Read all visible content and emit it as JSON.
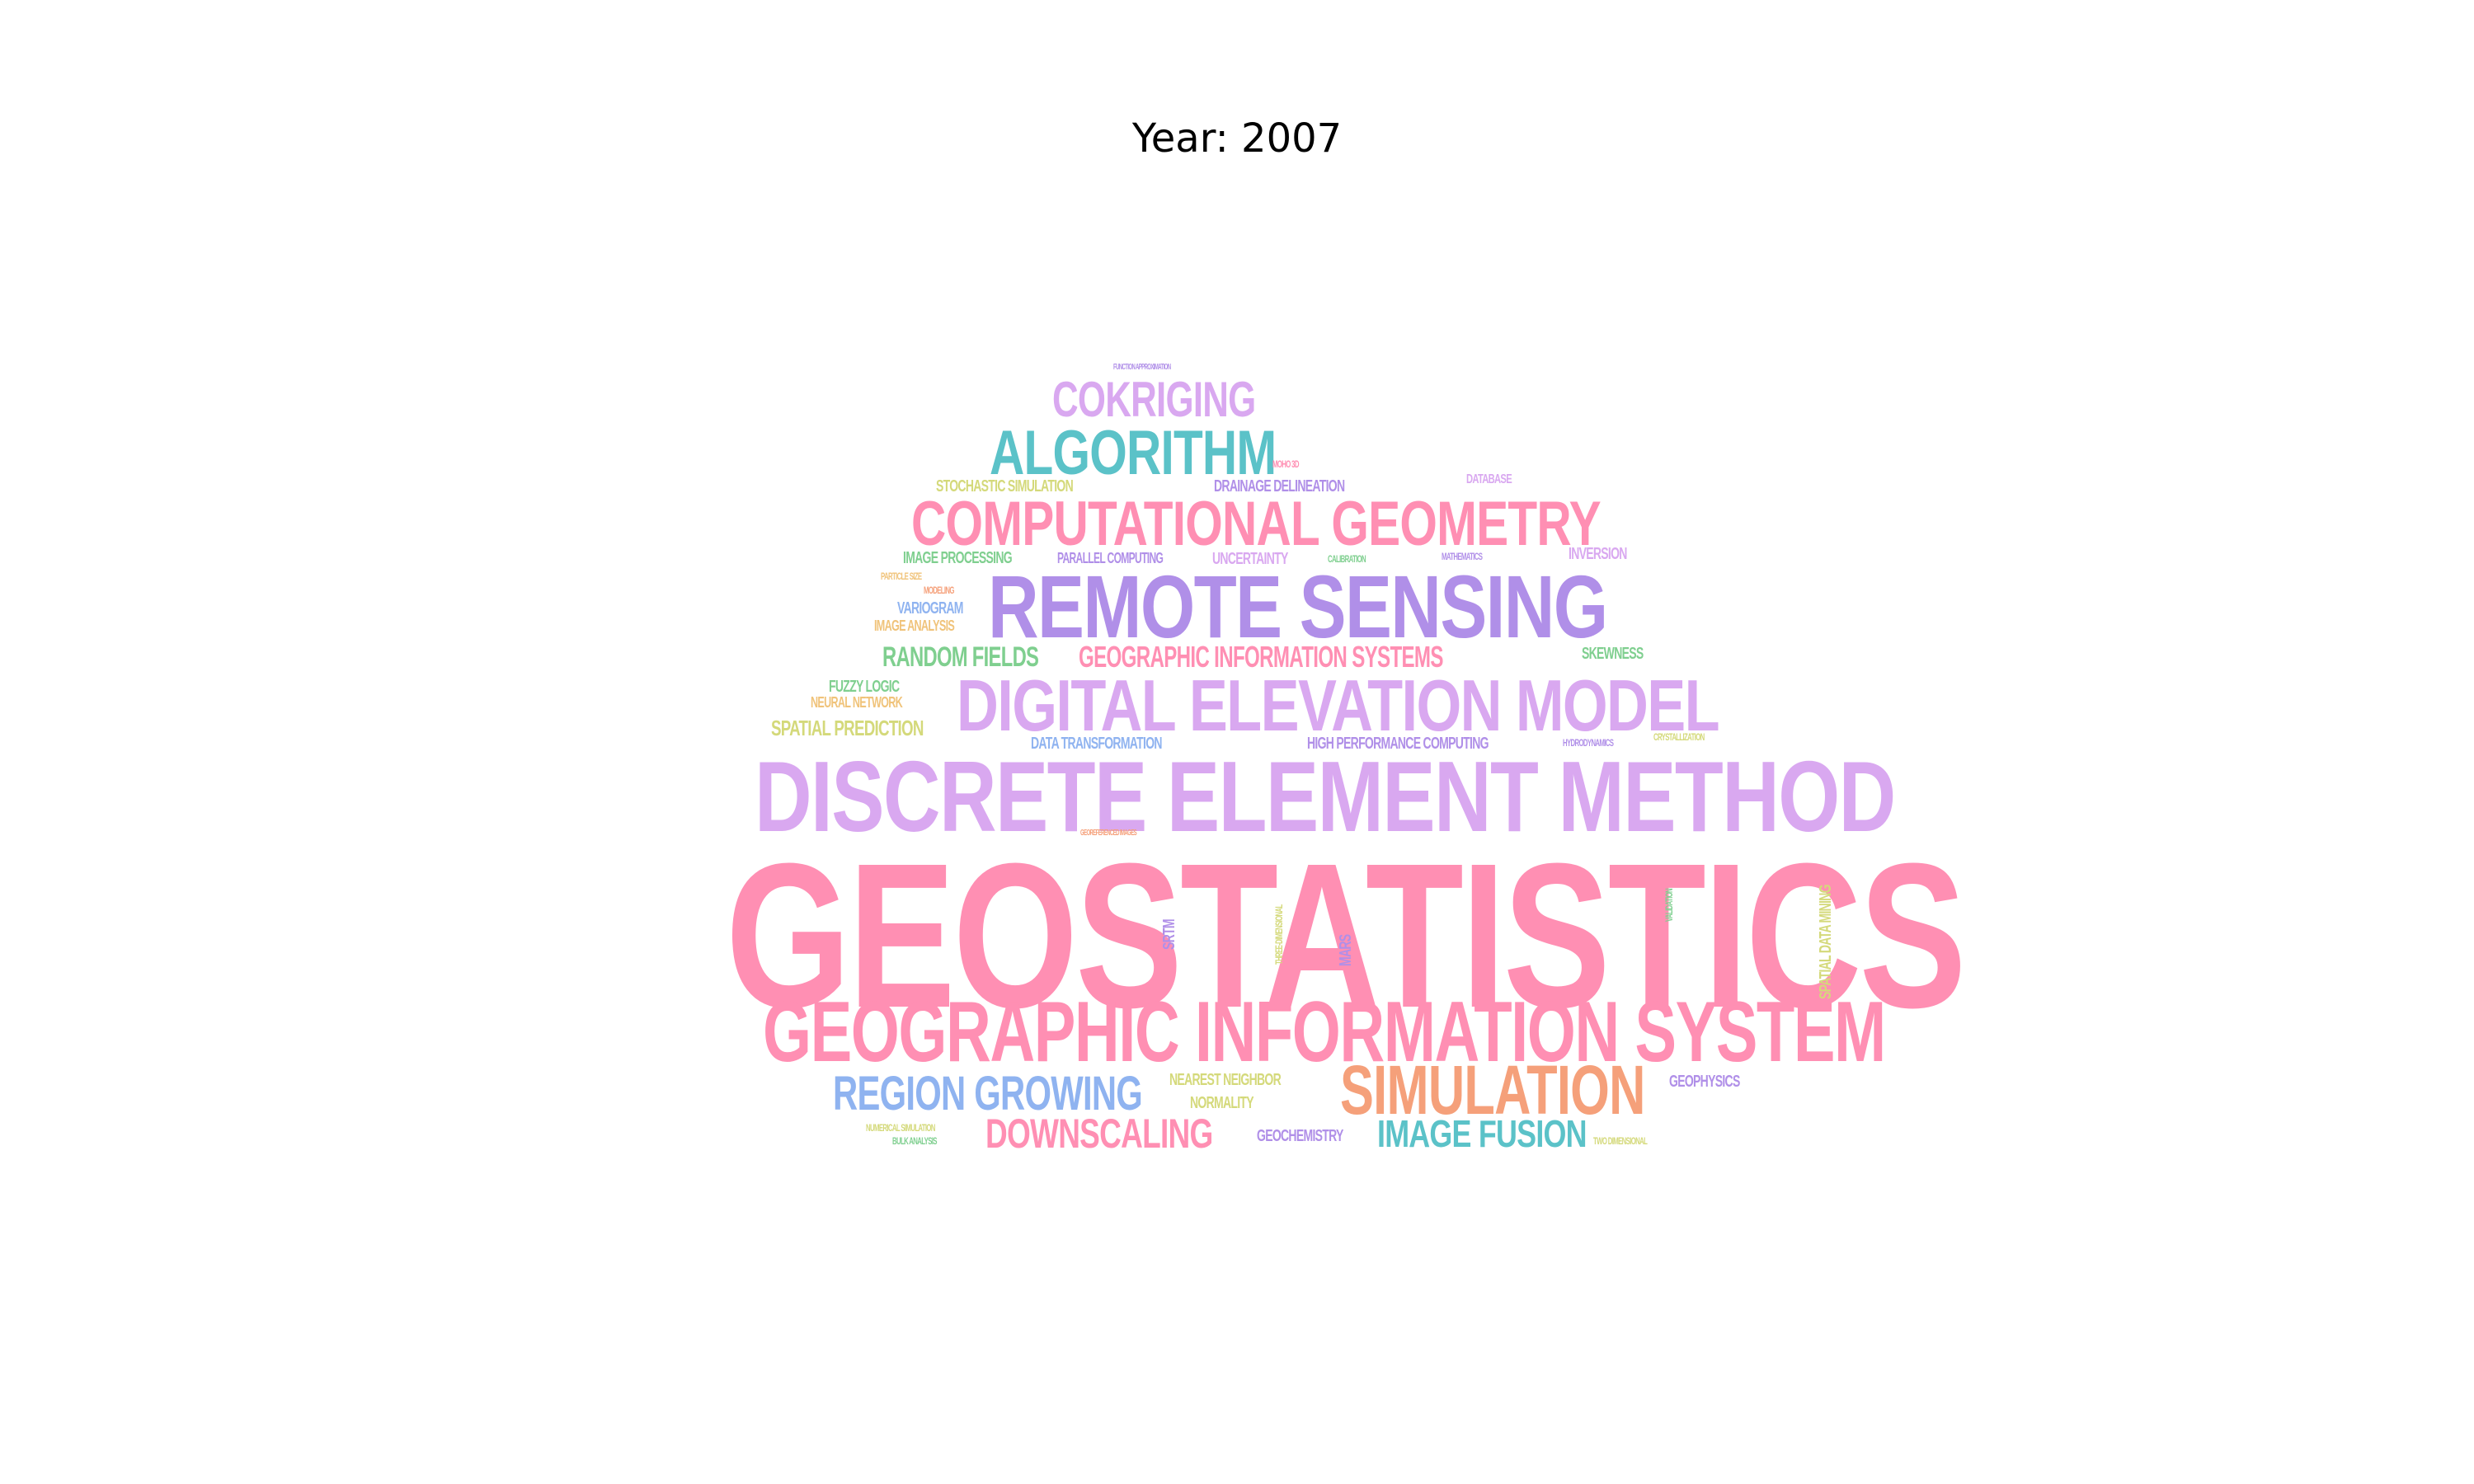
{
  "title": "Year: 2007",
  "colors": {
    "pink": "#ff8fb3",
    "lavender": "#d9a8f0",
    "purple": "#b08fe8",
    "teal": "#5bc2c8",
    "orange": "#f5a07a",
    "blue": "#8fb3f0",
    "green": "#7fcf8f",
    "yellow": "#d4d97a",
    "gold": "#f0c37a"
  },
  "words": [
    "GEOSTATISTICS",
    "DISCRETE ELEMENT METHOD",
    "GEOGRAPHIC INFORMATION SYSTEM",
    "REMOTE SENSING",
    "DIGITAL ELEVATION MODEL",
    "COMPUTATIONAL GEOMETRY",
    "ALGORITHM",
    "COKRIGING",
    "SIMULATION",
    "REGION GROWING",
    "DOWNSCALING",
    "IMAGE FUSION",
    "GEOGRAPHIC INFORMATION SYSTEMS",
    "RANDOM FIELDS",
    "SPATIAL PREDICTION",
    "STOCHASTIC SIMULATION",
    "DRAINAGE DELINEATION",
    "IMAGE PROCESSING",
    "PARALLEL COMPUTING",
    "UNCERTAINTY",
    "INVERSION",
    "VARIOGRAM",
    "IMAGE ANALYSIS",
    "SKEWNESS",
    "FUZZY LOGIC",
    "NEURAL NETWORK",
    "DATA TRANSFORMATION",
    "HIGH PERFORMANCE COMPUTING",
    "NEAREST NEIGHBOR",
    "NORMALITY",
    "GEOCHEMISTRY",
    "GEOPHYSICS",
    "SPATIAL DATA MINING",
    "SRTM",
    "MARS",
    "THREE-DIMENSIONAL",
    "VALIDATION",
    "DATABASE",
    "CALIBRATION",
    "MODELING",
    "FUNCTION APPROXIMATION",
    "MOHO 3D",
    "HYDRODYNAMICS",
    "CRYSTALLIZATION",
    "NUMERICAL SIMULATION",
    "BULK ANALYSIS",
    "TWO DIMENSIONAL",
    "PARTICLE SIZE",
    "MATHEMATICS",
    "GEOREFERENCED IMAGES"
  ]
}
